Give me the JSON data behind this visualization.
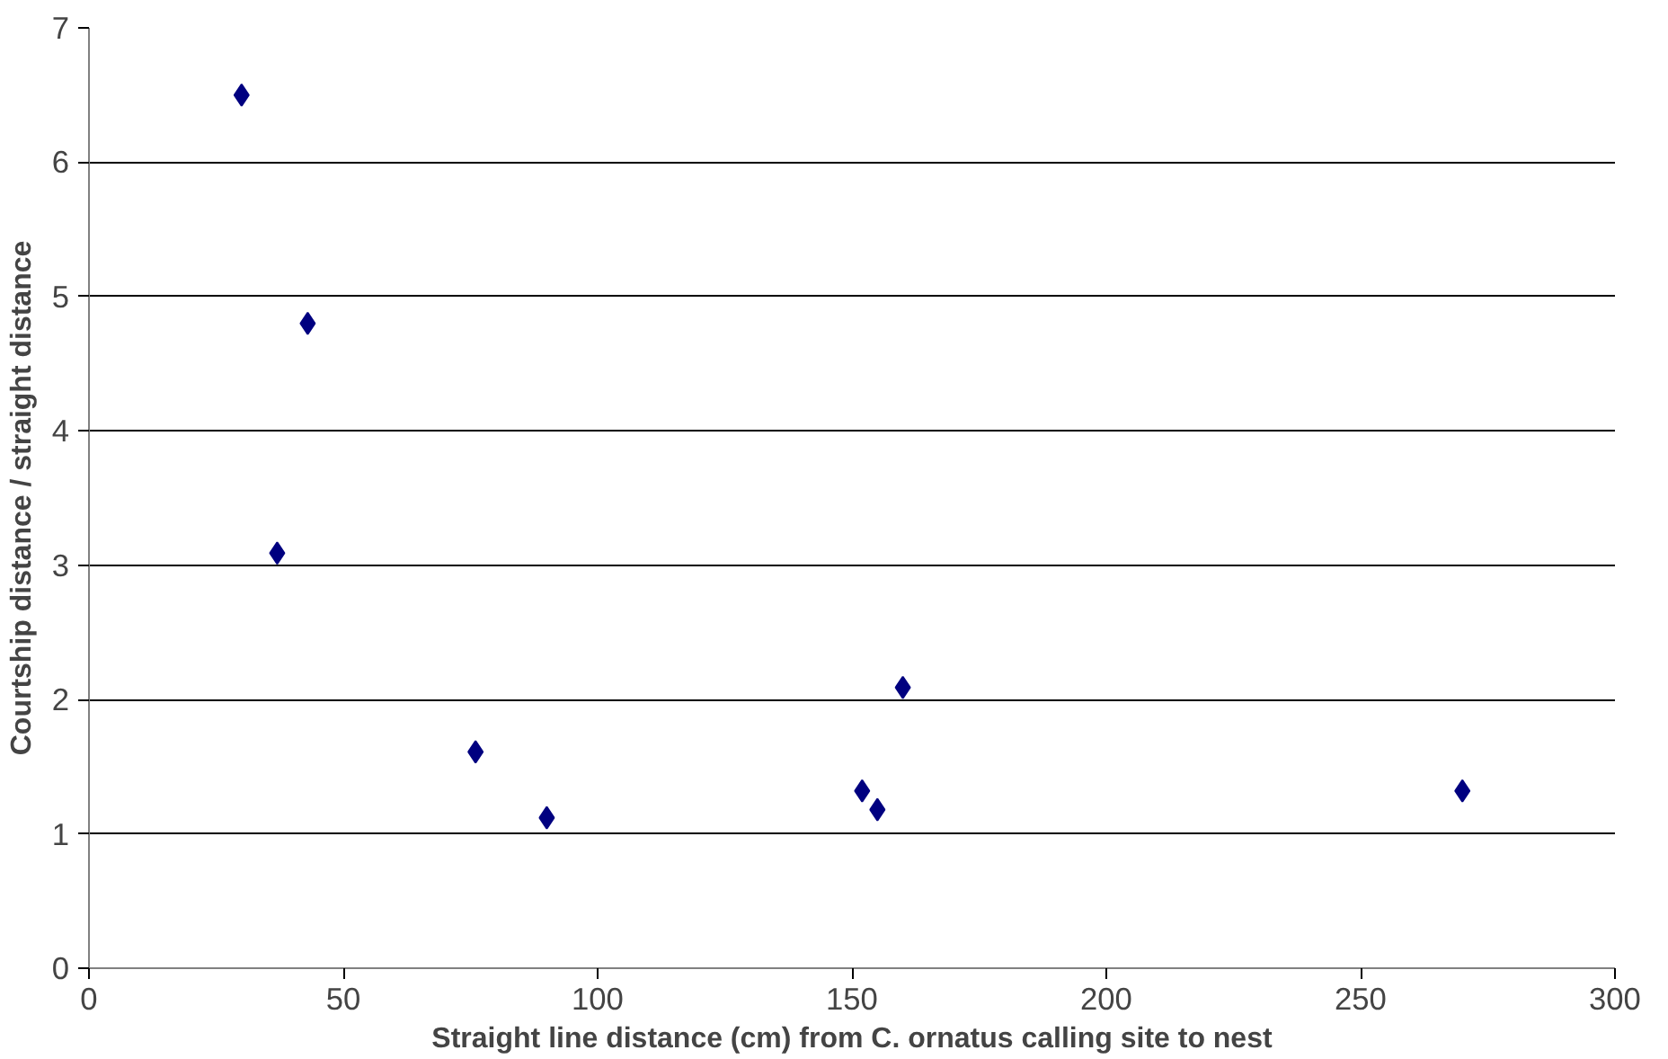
{
  "chart_data": {
    "type": "scatter",
    "xlabel": "Straight line distance (cm) from C. ornatus calling site to nest",
    "ylabel": "Courtship distance / straight distance",
    "x": [
      30,
      37,
      43,
      76,
      90,
      152,
      155,
      160,
      270
    ],
    "series": [
      {
        "color": "#000080",
        "values": [
          6.5,
          3.09,
          4.8,
          1.61,
          1.12,
          1.32,
          1.18,
          2.09,
          1.32
        ]
      }
    ],
    "xlim": [
      0,
      300
    ],
    "ylim": [
      0,
      7
    ],
    "xticks": [
      0,
      50,
      100,
      150,
      200,
      250,
      300
    ],
    "yticks": [
      0,
      1,
      2,
      3,
      4,
      5,
      6,
      7
    ],
    "grid": "y",
    "marker": "diamond"
  }
}
